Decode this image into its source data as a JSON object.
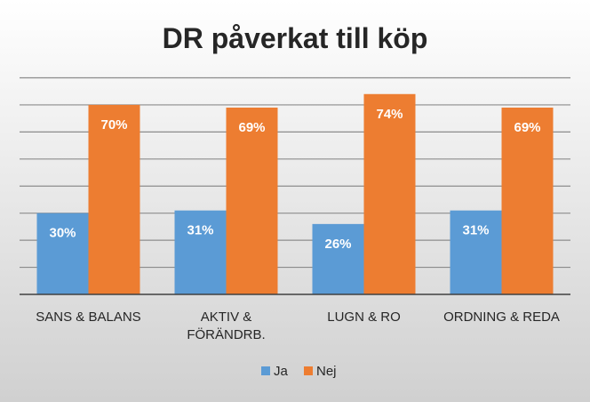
{
  "chart_data": {
    "type": "bar",
    "title": "DR påverkat till köp",
    "xlabel": "",
    "ylabel": "",
    "categories": [
      [
        "SANS & BALANS"
      ],
      [
        "AKTIV &",
        "FÖRÄNDRB."
      ],
      [
        "LUGN & RO"
      ],
      [
        "ORDNING & REDA"
      ]
    ],
    "series": [
      {
        "name": "Ja",
        "values": [
          30,
          31,
          26,
          31
        ],
        "color": "#5B9BD5",
        "labels": [
          "30%",
          "31%",
          "26%",
          "31%"
        ]
      },
      {
        "name": "Nej",
        "values": [
          70,
          69,
          74,
          69
        ],
        "color": "#ED7D31",
        "labels": [
          "70%",
          "69%",
          "74%",
          "69%"
        ]
      }
    ],
    "ylim": [
      0,
      80
    ],
    "gridlines": true,
    "gridline_step": 10,
    "legend_position": "bottom",
    "data_labels": true
  },
  "colors": {
    "background_top": "#FFFFFF",
    "background_bottom": "#D0D0D0",
    "gridline": "#8C8C8C",
    "baseline": "#404040",
    "text": "#262626",
    "title": "#262626",
    "label_text": "#FFFFFF"
  }
}
